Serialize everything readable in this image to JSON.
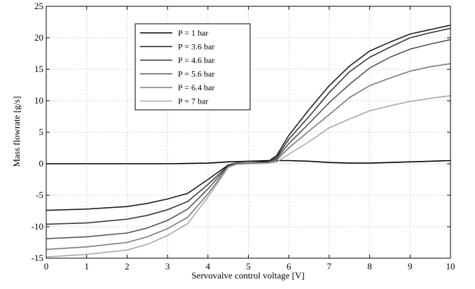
{
  "chart_data": {
    "type": "line",
    "xlabel": "Servovalve control voltage [V]",
    "ylabel": "Mass flowrate [g/s]",
    "xlim": [
      0,
      10
    ],
    "ylim": [
      -15,
      25
    ],
    "xticks": [
      0,
      1,
      2,
      3,
      4,
      5,
      6,
      7,
      8,
      9,
      10
    ],
    "yticks": [
      -15,
      -10,
      -5,
      0,
      5,
      10,
      15,
      20,
      25
    ],
    "grid": true,
    "legend_position": "top-left",
    "series": [
      {
        "name": "P = 1 bar",
        "color": "#000000",
        "x": [
          0,
          1,
          2,
          3,
          4,
          4.5,
          5,
          5.5,
          6,
          6.5,
          7,
          7.5,
          8,
          8.5,
          9,
          9.5,
          10
        ],
        "y": [
          0,
          0,
          0,
          0,
          0.1,
          0.3,
          0.4,
          0.5,
          0.5,
          0.4,
          0.2,
          0.1,
          0.1,
          0.2,
          0.3,
          0.4,
          0.5
        ]
      },
      {
        "name": "P = 3.6 bar",
        "color": "#1e1e1e",
        "x": [
          0,
          1,
          2,
          2.5,
          3,
          3.5,
          4,
          4.5,
          4.7,
          5,
          5.2,
          5.5,
          5.7,
          6,
          6.5,
          7,
          7.5,
          8,
          8.5,
          9,
          9.5,
          10
        ],
        "y": [
          -7.4,
          -7.2,
          -6.8,
          -6.3,
          -5.6,
          -4.7,
          -2.5,
          -0.2,
          0.1,
          0.1,
          0.2,
          0.4,
          1.3,
          4.5,
          8.6,
          12.4,
          15.5,
          17.9,
          19.3,
          20.6,
          21.3,
          22.0
        ]
      },
      {
        "name": "P = 4.6 bar",
        "color": "#3a3a3a",
        "x": [
          0,
          1,
          2,
          2.5,
          3,
          3.5,
          4,
          4.5,
          4.7,
          5,
          5.2,
          5.5,
          5.7,
          6,
          6.5,
          7,
          7.5,
          8,
          8.5,
          9,
          9.5,
          10
        ],
        "y": [
          -9.6,
          -9.4,
          -8.8,
          -8.2,
          -7.3,
          -6.0,
          -3.3,
          -0.3,
          0.0,
          0.1,
          0.2,
          0.3,
          1.0,
          3.9,
          7.5,
          11.3,
          14.6,
          16.9,
          18.5,
          20.0,
          20.8,
          21.5
        ]
      },
      {
        "name": "P = 5.6 bar",
        "color": "#555555",
        "x": [
          0,
          1,
          2,
          2.5,
          3,
          3.5,
          4,
          4.5,
          4.7,
          5,
          5.2,
          5.5,
          5.7,
          6,
          6.5,
          7,
          7.5,
          8,
          8.5,
          9,
          9.5,
          10
        ],
        "y": [
          -11.9,
          -11.6,
          -11.0,
          -10.2,
          -9.0,
          -7.2,
          -4.0,
          -0.4,
          0.0,
          0.1,
          0.1,
          0.2,
          0.8,
          3.2,
          6.4,
          9.7,
          12.6,
          15.2,
          16.9,
          18.2,
          19.0,
          19.7
        ]
      },
      {
        "name": "P = 6.4 bar",
        "color": "#7a7a7a",
        "x": [
          0,
          1,
          2,
          2.5,
          3,
          3.5,
          4,
          4.5,
          4.7,
          5,
          5.2,
          5.5,
          5.7,
          6,
          6.5,
          7,
          7.5,
          8,
          8.5,
          9,
          9.5,
          10
        ],
        "y": [
          -13.6,
          -13.2,
          -12.5,
          -11.6,
          -10.3,
          -8.5,
          -4.8,
          -0.5,
          -0.1,
          0.0,
          0.1,
          0.1,
          0.6,
          2.5,
          5.2,
          7.8,
          10.5,
          12.4,
          13.6,
          14.7,
          15.4,
          15.9
        ]
      },
      {
        "name": "P = 7 bar",
        "color": "#a8a8a8",
        "x": [
          0,
          1,
          2,
          2.5,
          3,
          3.5,
          4,
          4.5,
          4.7,
          5,
          5.2,
          5.5,
          5.7,
          6,
          6.5,
          7,
          7.5,
          8,
          8.5,
          9,
          9.5,
          10
        ],
        "y": [
          -14.8,
          -14.4,
          -13.7,
          -12.8,
          -11.4,
          -9.5,
          -5.3,
          -0.6,
          -0.1,
          0.0,
          0.0,
          0.1,
          0.3,
          1.5,
          3.5,
          5.7,
          7.1,
          8.4,
          9.2,
          9.9,
          10.4,
          10.8
        ]
      }
    ]
  }
}
